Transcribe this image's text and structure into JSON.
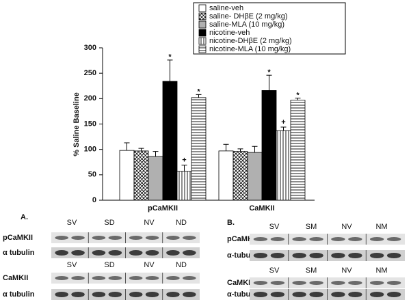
{
  "chart_data": {
    "type": "bar",
    "y_label": "% Saline Baseline",
    "categories": [
      "pCaMKII",
      "CaMKII"
    ],
    "ylim": [
      0,
      300
    ],
    "yticks": [
      0,
      50,
      100,
      150,
      200,
      250,
      300
    ],
    "series": [
      {
        "name": "saline-veh",
        "color": "#ffffff",
        "hatch": "none",
        "values": [
          98,
          97
        ],
        "errors": [
          15,
          13
        ]
      },
      {
        "name": "saline- DHβE (2 mg/kg)",
        "color": "#ffffff",
        "hatch": "crosshatch",
        "values": [
          97,
          96
        ],
        "errors": [
          5,
          5
        ]
      },
      {
        "name": "saline-MLA (10 mg/kg)",
        "color": "#b0b0b0",
        "hatch": "none",
        "values": [
          86,
          94
        ],
        "errors": [
          10,
          12
        ]
      },
      {
        "name": "nicotine-veh",
        "color": "#000000",
        "hatch": "none",
        "values": [
          234,
          216
        ],
        "errors": [
          42,
          30
        ],
        "markers": [
          "*",
          "*"
        ]
      },
      {
        "name": "nicotine-DHβE (2 mg/kg)",
        "color": "#ffffff",
        "hatch": "vertical",
        "values": [
          57,
          137
        ],
        "errors": [
          12,
          7
        ],
        "markers": [
          "+",
          "+"
        ]
      },
      {
        "name": "nicotine-MLA (10 mg/kg)",
        "color": "#ffffff",
        "hatch": "horizontal",
        "values": [
          202,
          197
        ],
        "errors": [
          6,
          4
        ],
        "markers": [
          "*",
          "*"
        ]
      }
    ]
  },
  "blot_panels": [
    {
      "label": "A.",
      "blots": [
        {
          "lanes": [
            "SV",
            "SD",
            "NV",
            "ND"
          ],
          "rows": [
            "pCaMKII",
            "α tubulin"
          ]
        },
        {
          "lanes": [
            "SV",
            "SD",
            "NV",
            "ND"
          ],
          "rows": [
            "CaMKII",
            "α tubulin"
          ]
        }
      ]
    },
    {
      "label": "B.",
      "blots": [
        {
          "lanes": [
            "SV",
            "SM",
            "NV",
            "NM"
          ],
          "rows": [
            "pCaMKII",
            "α-tubulin"
          ]
        },
        {
          "lanes": [
            "SV",
            "SM",
            "NV",
            "NM"
          ],
          "rows": [
            "CaMKII",
            "α-tubulin"
          ]
        }
      ]
    }
  ]
}
